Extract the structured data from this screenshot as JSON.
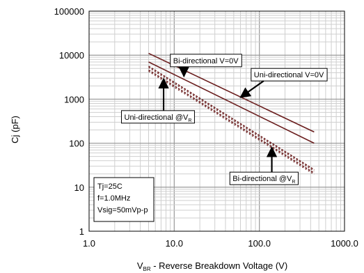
{
  "chart_data": {
    "type": "line",
    "x_scale": "log",
    "y_scale": "log",
    "xlim": [
      1,
      1000
    ],
    "ylim": [
      1,
      100000
    ],
    "grid": true,
    "ylabel": "Cj (pF)",
    "xlabel": {
      "prefix": "V",
      "subscript": "BR",
      "suffix": " - Reverse Breakdown Voltage (V)"
    },
    "x_ticks": [
      {
        "value": 1,
        "label": "1.0"
      },
      {
        "value": 10,
        "label": "10.0"
      },
      {
        "value": 100,
        "label": "100.0"
      },
      {
        "value": 1000,
        "label": "1000.0"
      }
    ],
    "y_ticks": [
      {
        "value": 1,
        "label": "1"
      },
      {
        "value": 10,
        "label": "10"
      },
      {
        "value": 100,
        "label": "100"
      },
      {
        "value": 1000,
        "label": "1000"
      },
      {
        "value": 10000,
        "label": "10000"
      },
      {
        "value": 100000,
        "label": "100000"
      }
    ],
    "series": [
      {
        "name": "Bi-directional V=0V",
        "style": "solid",
        "color": "#6b1f1f",
        "x": [
          5,
          440
        ],
        "y": [
          11000,
          180
        ]
      },
      {
        "name": "Uni-directional V=0V",
        "style": "solid",
        "color": "#6b1f1f",
        "x": [
          5,
          440
        ],
        "y": [
          7000,
          100
        ]
      },
      {
        "name": "Uni-directional @VR",
        "style": "dashed",
        "color": "#6b1f1f",
        "x": [
          5,
          440
        ],
        "y": [
          5600,
          25
        ]
      },
      {
        "name": "Bi-directional @VR",
        "style": "dashed",
        "color": "#6b1f1f",
        "x": [
          5,
          440
        ],
        "y": [
          4600,
          21
        ]
      }
    ],
    "annotations": [
      {
        "text": "Bi-directional V=0V",
        "sub": "",
        "box": {
          "x": 9,
          "y": 10500
        },
        "arrow_to": {
          "x": 13,
          "y": 3300
        }
      },
      {
        "text": "Uni-directional V=0V",
        "sub": "",
        "box": {
          "x": 80,
          "y": 5000
        },
        "arrow_to": {
          "x": 60,
          "y": 1100
        }
      },
      {
        "text": "Uni-directional @V",
        "sub": "R",
        "box": {
          "x": 2.4,
          "y": 550
        },
        "arrow_to": {
          "x": 7.5,
          "y": 2900
        }
      },
      {
        "text": "Bi-directional @V",
        "sub": "R",
        "box": {
          "x": 45,
          "y": 22
        },
        "arrow_to": {
          "x": 140,
          "y": 80
        }
      }
    ],
    "conditions": [
      "Tj=25C",
      "f=1.0MHz",
      "Vsig=50mVp-p"
    ]
  }
}
